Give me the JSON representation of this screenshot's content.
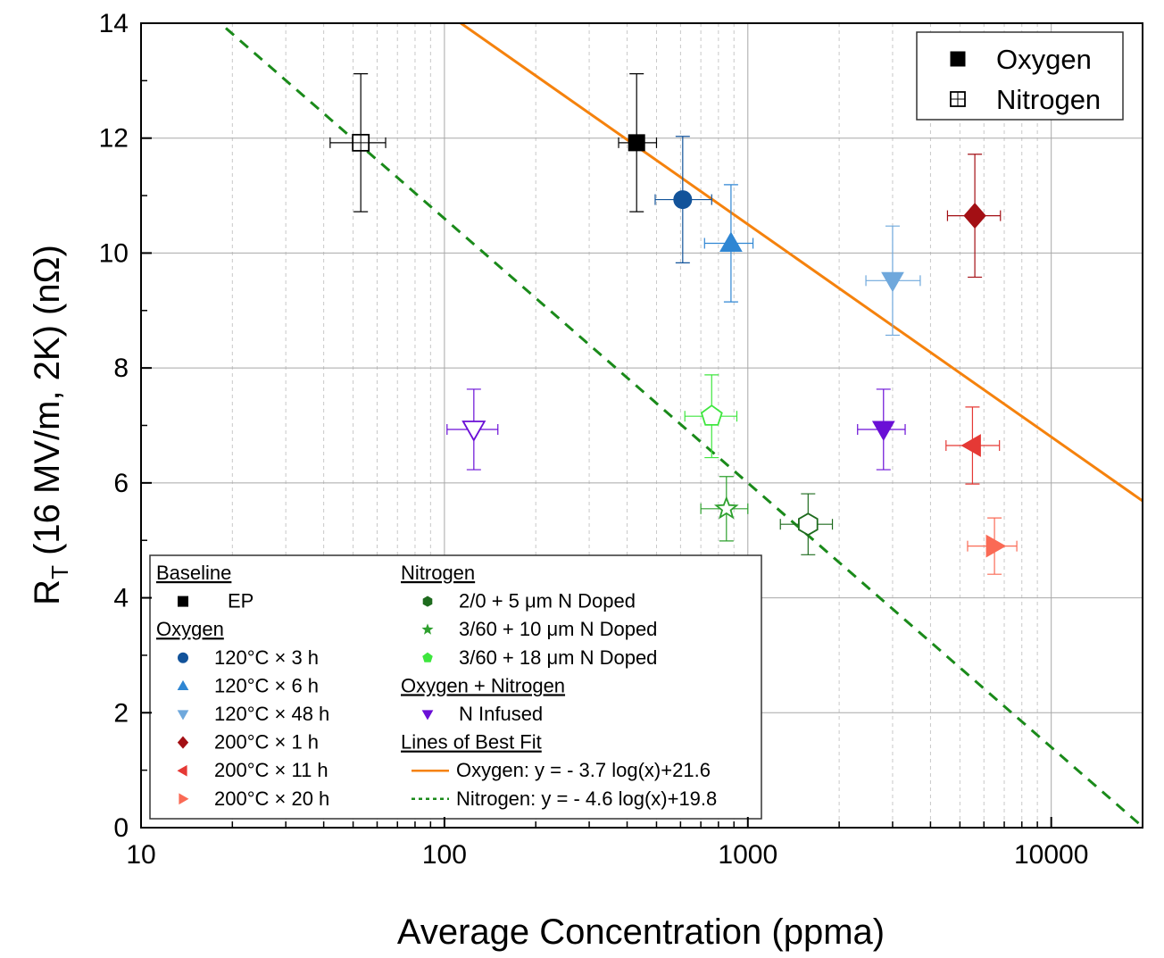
{
  "chart_data": {
    "type": "scatter",
    "title": "",
    "xlabel": "Average Concentration (ppma)",
    "ylabel_main": "R",
    "ylabel_sub": "T",
    "ylabel_rest": " (16 MV/m, 2K) (nΩ)",
    "xscale": "log",
    "xlim": [
      10,
      20000
    ],
    "ylim": [
      0,
      14
    ],
    "x_ticks": [
      10,
      100,
      1000,
      10000
    ],
    "x_tick_labels": [
      "10",
      "100",
      "1000",
      "10000"
    ],
    "y_ticks": [
      0,
      2,
      4,
      6,
      8,
      10,
      12,
      14
    ],
    "y_tick_labels": [
      "0",
      "2",
      "4",
      "6",
      "8",
      "10",
      "12",
      "14"
    ],
    "grid": true,
    "legend_placement": "bottom-left",
    "series": [
      {
        "name": "EP",
        "group": "Baseline",
        "marker": "square",
        "color": "#000000",
        "points": [
          {
            "x": 430,
            "y": 11.92,
            "xerr": [
              375,
              500
            ],
            "yerr": 1.2,
            "fill": "solid"
          },
          {
            "x": 53,
            "y": 11.92,
            "xerr": [
              42,
              64
            ],
            "yerr": 1.2,
            "fill": "hollow"
          }
        ]
      },
      {
        "name": "120°C × 3 h",
        "group": "Oxygen",
        "marker": "circle",
        "color": "#12539a",
        "points": [
          {
            "x": 610,
            "y": 10.93,
            "xerr": [
              495,
              760
            ],
            "yerr": 1.1,
            "fill": "solid"
          }
        ]
      },
      {
        "name": "120°C × 6 h",
        "group": "Oxygen",
        "marker": "triangle-up",
        "color": "#2f86d3",
        "points": [
          {
            "x": 880,
            "y": 10.17,
            "xerr": [
              720,
              1040
            ],
            "yerr": 1.02,
            "fill": "solid"
          }
        ]
      },
      {
        "name": "120°C × 48 h",
        "group": "Oxygen",
        "marker": "triangle-down",
        "color": "#6fa8dc",
        "points": [
          {
            "x": 3000,
            "y": 9.52,
            "xerr": [
              2450,
              3700
            ],
            "yerr": 0.95,
            "fill": "solid"
          }
        ]
      },
      {
        "name": "200°C × 1 h",
        "group": "Oxygen",
        "marker": "diamond",
        "color": "#a30f14",
        "points": [
          {
            "x": 5600,
            "y": 10.65,
            "xerr": [
              4550,
              6800
            ],
            "yerr": 1.07,
            "fill": "solid"
          }
        ]
      },
      {
        "name": "200°C × 11 h",
        "group": "Oxygen",
        "marker": "triangle-left",
        "color": "#e53935",
        "points": [
          {
            "x": 5500,
            "y": 6.65,
            "xerr": [
              4500,
              6750
            ],
            "yerr": 0.67,
            "fill": "solid"
          }
        ]
      },
      {
        "name": "200°C × 20 h",
        "group": "Oxygen",
        "marker": "triangle-right",
        "color": "#fa6a55",
        "points": [
          {
            "x": 6500,
            "y": 4.9,
            "xerr": [
              5300,
              7700
            ],
            "yerr": 0.49,
            "fill": "solid"
          }
        ]
      },
      {
        "name": "2/0 + 5 μm N Doped",
        "group": "Nitrogen",
        "marker": "hexagon",
        "color": "#1e6b1e",
        "points": [
          {
            "x": 1580,
            "y": 5.28,
            "xerr": [
              1280,
              1900
            ],
            "yerr": 0.53,
            "fill": "hollow"
          }
        ]
      },
      {
        "name": "3/60 + 10 μm N Doped",
        "group": "Nitrogen",
        "marker": "star",
        "color": "#2ea02e",
        "points": [
          {
            "x": 850,
            "y": 5.55,
            "xerr": [
              700,
              1000
            ],
            "yerr": 0.56,
            "fill": "hollow"
          }
        ]
      },
      {
        "name": "3/60 + 18 μm N Doped",
        "group": "Nitrogen",
        "marker": "pentagon",
        "color": "#3ee63e",
        "points": [
          {
            "x": 760,
            "y": 7.16,
            "xerr": [
              620,
              920
            ],
            "yerr": 0.72,
            "fill": "hollow"
          }
        ]
      },
      {
        "name": "N Infused",
        "group": "Oxygen + Nitrogen",
        "marker": "triangle-down",
        "color": "#6a0fd6",
        "points": [
          {
            "x": 2800,
            "y": 6.93,
            "xerr": [
              2300,
              3300
            ],
            "yerr": 0.7,
            "fill": "solid"
          },
          {
            "x": 125,
            "y": 6.93,
            "xerr": [
              102,
              150
            ],
            "yerr": 0.7,
            "fill": "hollow"
          }
        ]
      }
    ],
    "fits": [
      {
        "name": "Oxygen",
        "label": "Oxygen:  y = - 3.7 log(x)+21.6",
        "slope": -3.7,
        "intercept": 21.6,
        "color": "#f5820d",
        "style": "solid"
      },
      {
        "name": "Nitrogen",
        "label": "Nitrogen: y = - 4.6 log(x)+19.8",
        "slope": -4.6,
        "intercept": 19.8,
        "color": "#1a8a1a",
        "style": "dashed"
      }
    ],
    "fill_legend": {
      "items": [
        {
          "label": "Oxygen",
          "fill": "solid"
        },
        {
          "label": "Nitrogen",
          "fill": "hollow"
        }
      ]
    },
    "legend": {
      "sections": [
        {
          "heading": "Baseline",
          "items": [
            "EP"
          ]
        },
        {
          "heading": "Oxygen",
          "items": [
            "120°C × 3 h",
            "120°C × 6 h",
            "120°C × 48 h",
            "200°C × 1 h",
            "200°C × 11 h",
            "200°C × 20 h"
          ]
        },
        {
          "heading": "Nitrogen",
          "items": [
            "2/0 + 5 μm N Doped",
            "3/60 + 10 μm N Doped",
            "3/60 + 18 μm N Doped"
          ]
        },
        {
          "heading": "Oxygen + Nitrogen",
          "items": [
            "N Infused"
          ]
        },
        {
          "heading": "Lines of Best Fit",
          "items": [
            "Oxygen:  y = - 3.7 log(x)+21.6",
            "Nitrogen: y = - 4.6 log(x)+19.8"
          ]
        }
      ]
    }
  }
}
